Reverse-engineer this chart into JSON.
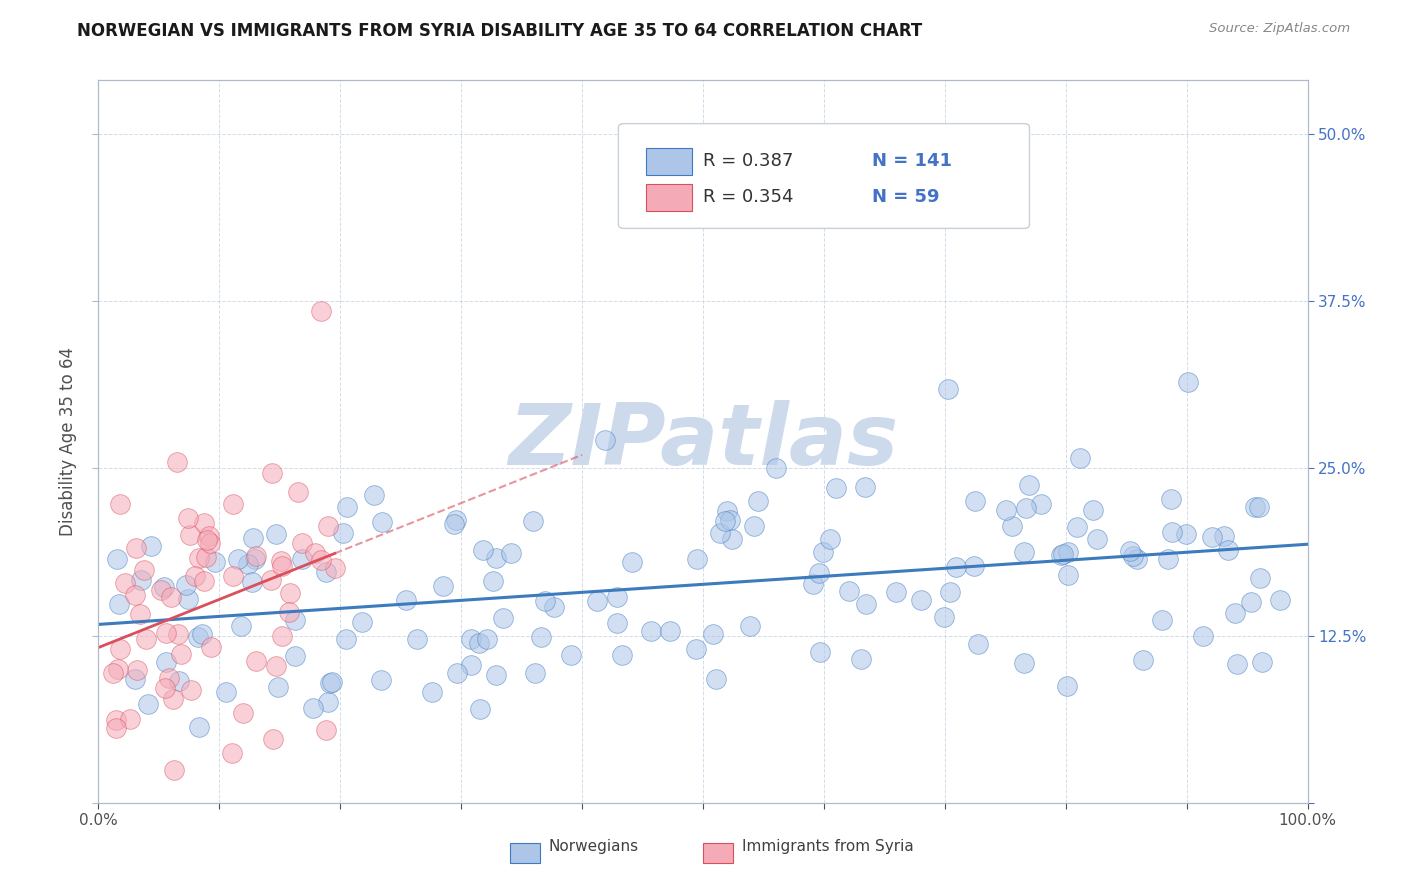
{
  "title": "NORWEGIAN VS IMMIGRANTS FROM SYRIA DISABILITY AGE 35 TO 64 CORRELATION CHART",
  "source": "Source: ZipAtlas.com",
  "ylabel": "Disability Age 35 to 64",
  "xlim": [
    0.0,
    1.0
  ],
  "ylim": [
    0.0,
    0.54
  ],
  "yticks": [
    0.0,
    0.125,
    0.25,
    0.375,
    0.5
  ],
  "ytick_labels_right": [
    "",
    "12.5%",
    "25.0%",
    "37.5%",
    "50.0%"
  ],
  "xticks": [
    0.0,
    0.1,
    0.2,
    0.3,
    0.4,
    0.5,
    0.6,
    0.7,
    0.8,
    0.9,
    1.0
  ],
  "xtick_labels": [
    "0.0%",
    "",
    "",
    "",
    "",
    "",
    "",
    "",
    "",
    "",
    "100.0%"
  ],
  "norwegian_color": "#adc6e8",
  "syria_color": "#f5aab8",
  "trend_norwegian_color": "#3d7bbf",
  "trend_syria_color": "#d94f5c",
  "watermark_color": "#ccdaec",
  "legend_box_norwegian": "#adc6e8",
  "legend_box_syria": "#f5aab8",
  "r_norwegian": 0.387,
  "n_norwegian": 141,
  "r_syria": 0.354,
  "n_syria": 59,
  "norway_seed": 42,
  "syria_seed": 77,
  "title_fontsize": 12,
  "tick_label_color": "#4472c4",
  "axis_color": "#b0b8cc"
}
